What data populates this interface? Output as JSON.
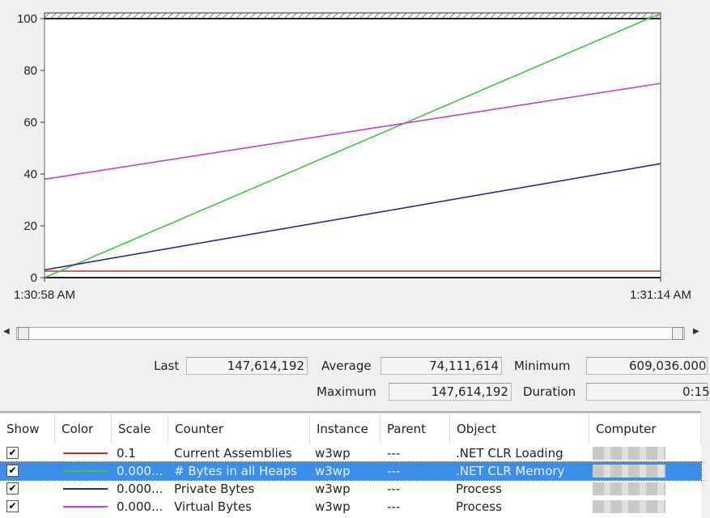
{
  "chart_data": {
    "type": "line",
    "x": [
      "1:30:58 AM",
      "1:31:14 AM"
    ],
    "ylim": [
      0,
      100
    ],
    "yticks": [
      "0",
      "20",
      "40",
      "60",
      "80",
      "100"
    ],
    "xticks": [
      "1:30:58 AM",
      "1:31:14 AM"
    ],
    "grid": false,
    "series": [
      {
        "name": "Current Assemblies",
        "color": "#b03a3a",
        "values": [
          2.5,
          2.5
        ]
      },
      {
        "name": "# Bytes in all Heaps",
        "color": "#44c444",
        "values": [
          0,
          102
        ]
      },
      {
        "name": "Private Bytes",
        "color": "#2a2a90",
        "values": [
          3,
          44
        ]
      },
      {
        "name": "Virtual Bytes",
        "color": "#c040d0",
        "values": [
          38,
          75
        ]
      }
    ]
  },
  "stats": {
    "last_label": "Last",
    "last": "147,614,192",
    "average_label": "Average",
    "average": "74,111,614",
    "minimum_label": "Minimum",
    "minimum": "609,036.000",
    "maximum_label": "Maximum",
    "maximum": "147,614,192",
    "duration_label": "Duration",
    "duration": "0:15"
  },
  "table": {
    "headers": [
      "Show",
      "Color",
      "Scale",
      "Counter",
      "Instance",
      "Parent",
      "Object",
      "Computer"
    ],
    "rows": [
      {
        "show": "✔",
        "color": "#b03a3a",
        "scale": "0.1",
        "counter": "Current Assemblies",
        "instance": "w3wp",
        "parent": "---",
        "object": ".NET CLR Loading",
        "selected": false
      },
      {
        "show": "✔",
        "color": "#44c444",
        "scale": "0.000...",
        "counter": "# Bytes in all Heaps",
        "instance": "w3wp",
        "parent": "---",
        "object": ".NET CLR Memory",
        "selected": true
      },
      {
        "show": "✔",
        "color": "#2a2a90",
        "scale": "0.000...",
        "counter": "Private Bytes",
        "instance": "w3wp",
        "parent": "---",
        "object": "Process",
        "selected": false
      },
      {
        "show": "✔",
        "color": "#c040d0",
        "scale": "0.000...",
        "counter": "Virtual Bytes",
        "instance": "w3wp",
        "parent": "---",
        "object": "Process",
        "selected": false
      }
    ]
  }
}
